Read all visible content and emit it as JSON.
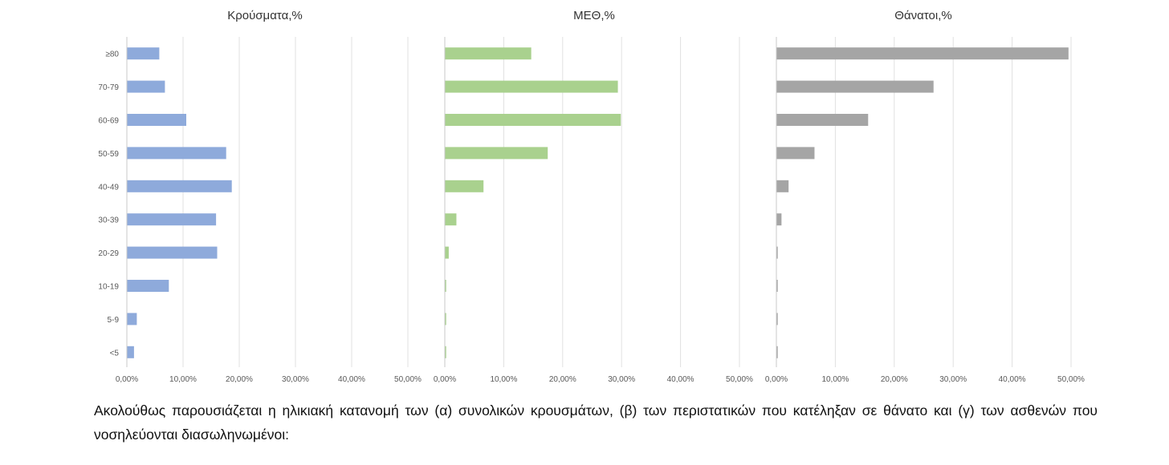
{
  "chart_data": [
    {
      "type": "bar",
      "orientation": "horizontal",
      "title": "Κρούσματα,%",
      "categories": [
        "≥80",
        "70-79",
        "60-69",
        "50-59",
        "40-49",
        "30-39",
        "20-29",
        "10-19",
        "5-9",
        "<5"
      ],
      "values": [
        5.7,
        6.7,
        10.5,
        17.6,
        18.6,
        15.8,
        16.0,
        7.4,
        1.7,
        1.2
      ],
      "xlim": [
        0,
        50
      ],
      "xticks": [
        "0,00%",
        "10,00%",
        "20,00%",
        "30,00%",
        "40,00%",
        "50,00%"
      ],
      "grid": true,
      "color": "#8eaadb"
    },
    {
      "type": "bar",
      "orientation": "horizontal",
      "title": "ΜΕΘ,%",
      "categories": [
        "≥80",
        "70-79",
        "60-69",
        "50-59",
        "40-49",
        "30-39",
        "20-29",
        "10-19",
        "5-9",
        "<5"
      ],
      "values": [
        14.6,
        29.3,
        29.8,
        17.4,
        6.5,
        1.9,
        0.6,
        0.1,
        0.1,
        0.1
      ],
      "xlim": [
        0,
        50
      ],
      "xticks": [
        "0,00%",
        "10,00%",
        "20,00%",
        "30,00%",
        "40,00%",
        "50,00%"
      ],
      "grid": true,
      "color": "#a9d18e"
    },
    {
      "type": "bar",
      "orientation": "horizontal",
      "title": "Θάνατοι,%",
      "categories": [
        "≥80",
        "70-79",
        "60-69",
        "50-59",
        "40-49",
        "30-39",
        "20-29",
        "10-19",
        "5-9",
        "<5"
      ],
      "values": [
        49.5,
        26.6,
        15.5,
        6.4,
        2.0,
        0.8,
        0.1,
        0.1,
        0.05,
        0.1
      ],
      "xlim": [
        0,
        50
      ],
      "xticks": [
        "0,00%",
        "10,00%",
        "20,00%",
        "30,00%",
        "40,00%",
        "50,00%"
      ],
      "grid": true,
      "color": "#a5a5a5"
    }
  ],
  "caption": "Ακολούθως παρουσιάζεται η ηλικιακή κατανομή των (α) συνολικών κρουσμάτων, (β) των περιστατικών που κατέληξαν σε θάνατο και (γ) των ασθενών που νοσηλεύονται διασωληνωμένοι:"
}
